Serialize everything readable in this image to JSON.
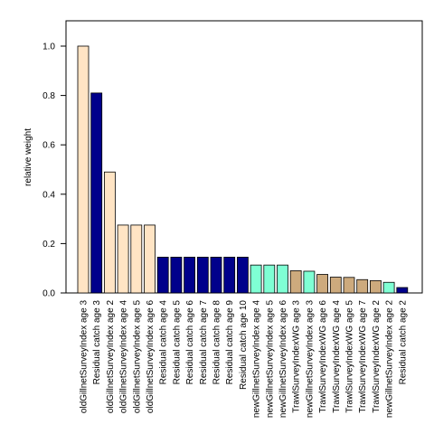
{
  "chart_data": {
    "type": "bar",
    "ylabel": "relative weight",
    "xlabel": "",
    "title": "",
    "ylim": [
      0,
      1.1
    ],
    "yticks": [
      "0.0",
      "0.2",
      "0.4",
      "0.6",
      "0.8",
      "1.0"
    ],
    "grid": false,
    "legend": "none",
    "colors": {
      "old": "#FFE4C4",
      "resid": "#00008B",
      "new": "#7FFFD4",
      "trawl": "#CDAA7D"
    },
    "categories": [
      "oldGillnetSurveyIndex age 3",
      "Residual catch age 3",
      "oldGillnetSurveyIndex age 2",
      "oldGillnetSurveyIndex age 4",
      "oldGillnetSurveyIndex age 5",
      "oldGillnetSurveyIndex age 6",
      "Residual catch age 4",
      "Residual catch age 5",
      "Residual catch age 6",
      "Residual catch age 7",
      "Residual catch age 8",
      "Residual catch age 9",
      "Residual catch age 10",
      "newGillnetSurveyIndex age 4",
      "newGillnetSurveyIndex age 5",
      "newGillnetSurveyIndex age 6",
      "TrawlSurveyIndexWG age 3",
      "newGillnetSurveyIndex age 3",
      "TrawlSurveyIndexWG age 6",
      "TrawlSurveyIndexWG age 4",
      "TrawlSurveyIndexWG age 5",
      "TrawlSurveyIndexWG age 7",
      "TrawlSurveyIndexWG age 2",
      "newGillnetSurveyIndex age 2",
      "Residual catch age 2"
    ],
    "values": [
      1.0,
      0.81,
      0.49,
      0.275,
      0.275,
      0.275,
      0.145,
      0.145,
      0.145,
      0.145,
      0.145,
      0.145,
      0.145,
      0.113,
      0.113,
      0.113,
      0.09,
      0.088,
      0.075,
      0.064,
      0.063,
      0.054,
      0.05,
      0.043,
      0.022
    ],
    "groups": [
      "old",
      "resid",
      "old",
      "old",
      "old",
      "old",
      "resid",
      "resid",
      "resid",
      "resid",
      "resid",
      "resid",
      "resid",
      "new",
      "new",
      "new",
      "trawl",
      "new",
      "trawl",
      "trawl",
      "trawl",
      "trawl",
      "trawl",
      "new",
      "resid"
    ]
  }
}
